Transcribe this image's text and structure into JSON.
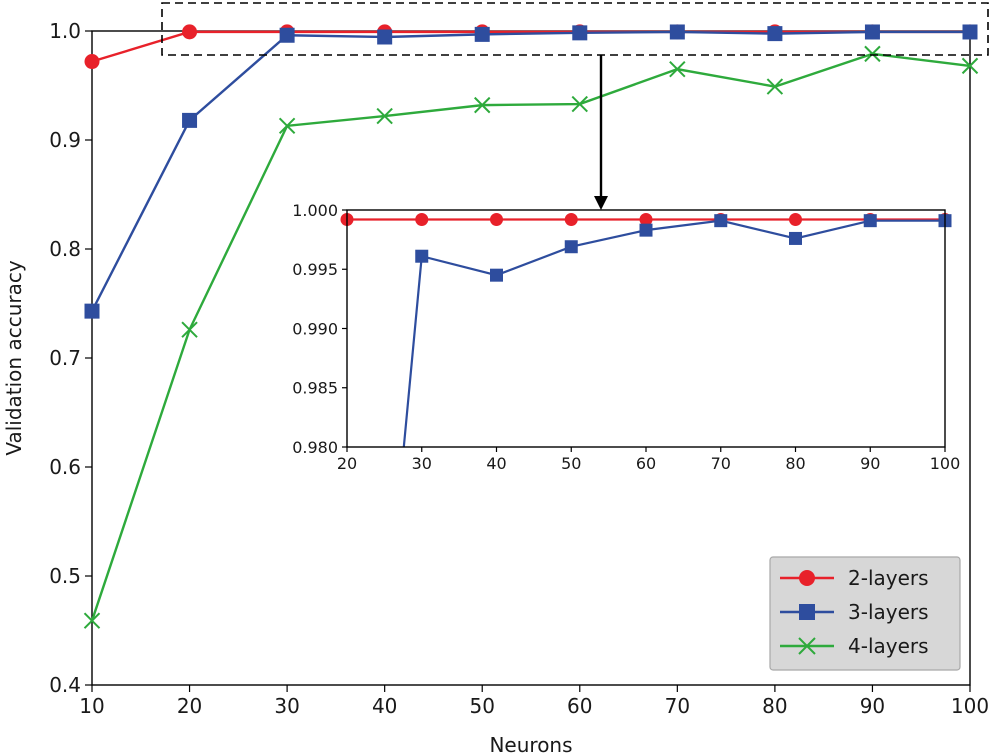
{
  "chart_data": [
    {
      "type": "line",
      "xlabel": "Neurons",
      "ylabel": "Validation accuracy",
      "xlim": [
        10,
        100
      ],
      "ylim": [
        0.4,
        1.0
      ],
      "xticks": [
        "10",
        "20",
        "30",
        "40",
        "50",
        "60",
        "70",
        "80",
        "90",
        "100"
      ],
      "yticks": [
        "0.4",
        "0.5",
        "0.6",
        "0.7",
        "0.8",
        "0.9",
        "1.0"
      ],
      "x": [
        10,
        20,
        30,
        40,
        50,
        60,
        70,
        80,
        90,
        100
      ],
      "series": [
        {
          "name": "2-layers",
          "color": "#e8212a",
          "marker": "circle",
          "values": [
            0.972,
            0.9992,
            0.9992,
            0.9992,
            0.9992,
            0.9992,
            0.9992,
            0.9992,
            0.9992,
            0.9992
          ]
        },
        {
          "name": "3-layers",
          "color": "#2e4d9e",
          "marker": "square",
          "values": [
            0.743,
            0.918,
            0.9961,
            0.9945,
            0.9969,
            0.9983,
            0.9991,
            0.9976,
            0.9991,
            0.9991
          ]
        },
        {
          "name": "4-layers",
          "color": "#2eaa3c",
          "marker": "x",
          "values": [
            0.459,
            0.726,
            0.913,
            0.922,
            0.932,
            0.933,
            0.965,
            0.949,
            0.979,
            0.968
          ]
        }
      ],
      "legend": {
        "placement": "bottom-right",
        "entries": [
          "2-layers",
          "3-layers",
          "4-layers"
        ]
      },
      "zoom_box": {
        "xlim": [
          18,
          100
        ],
        "ylim": [
          0.976,
          1.0
        ]
      }
    },
    {
      "type": "line",
      "role": "inset",
      "xlim": [
        20,
        100
      ],
      "ylim": [
        0.98,
        1.0
      ],
      "xticks": [
        "20",
        "30",
        "40",
        "50",
        "60",
        "70",
        "80",
        "90",
        "100"
      ],
      "yticks": [
        "0.980",
        "0.985",
        "0.990",
        "0.995",
        "1.000"
      ],
      "x": [
        30,
        40,
        50,
        60,
        70,
        80,
        90,
        100
      ],
      "series": [
        {
          "name": "2-layers",
          "color": "#e8212a",
          "marker": "circle",
          "x": [
            20,
            30,
            40,
            50,
            60,
            70,
            80,
            90,
            100
          ],
          "values": [
            0.9992,
            0.9992,
            0.9992,
            0.9992,
            0.9992,
            0.9992,
            0.9992,
            0.9992,
            0.9992
          ]
        },
        {
          "name": "3-layers",
          "color": "#2e4d9e",
          "marker": "square",
          "x": [
            27.6,
            30,
            40,
            50,
            60,
            70,
            80,
            90,
            100
          ],
          "values": [
            0.98,
            0.9961,
            0.9945,
            0.9969,
            0.9983,
            0.9991,
            0.9976,
            0.9991,
            0.9991
          ]
        }
      ]
    }
  ]
}
